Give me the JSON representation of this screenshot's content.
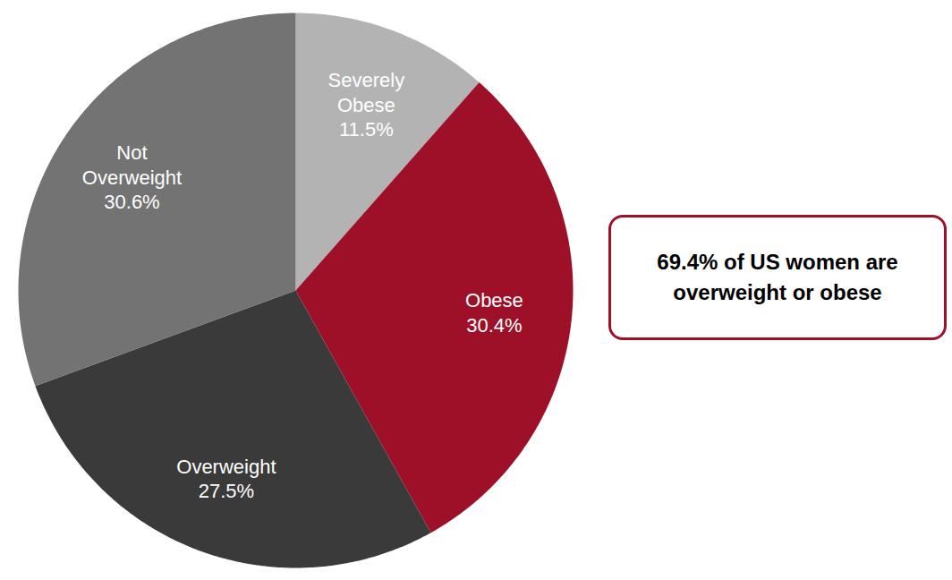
{
  "chart_data": {
    "type": "pie",
    "categories": [
      "Severely Obese",
      "Obese",
      "Overweight",
      "Not Overweight"
    ],
    "values": [
      11.5,
      30.4,
      27.5,
      30.6
    ],
    "value_labels": [
      "11.5%",
      "30.4%",
      "27.5%",
      "30.6%"
    ],
    "colors": [
      "#b3b3b3",
      "#9e1028",
      "#3a3a3a",
      "#737373"
    ],
    "data_labels": true,
    "annotations": [
      "69.4% of US women are overweight or obese"
    ]
  }
}
